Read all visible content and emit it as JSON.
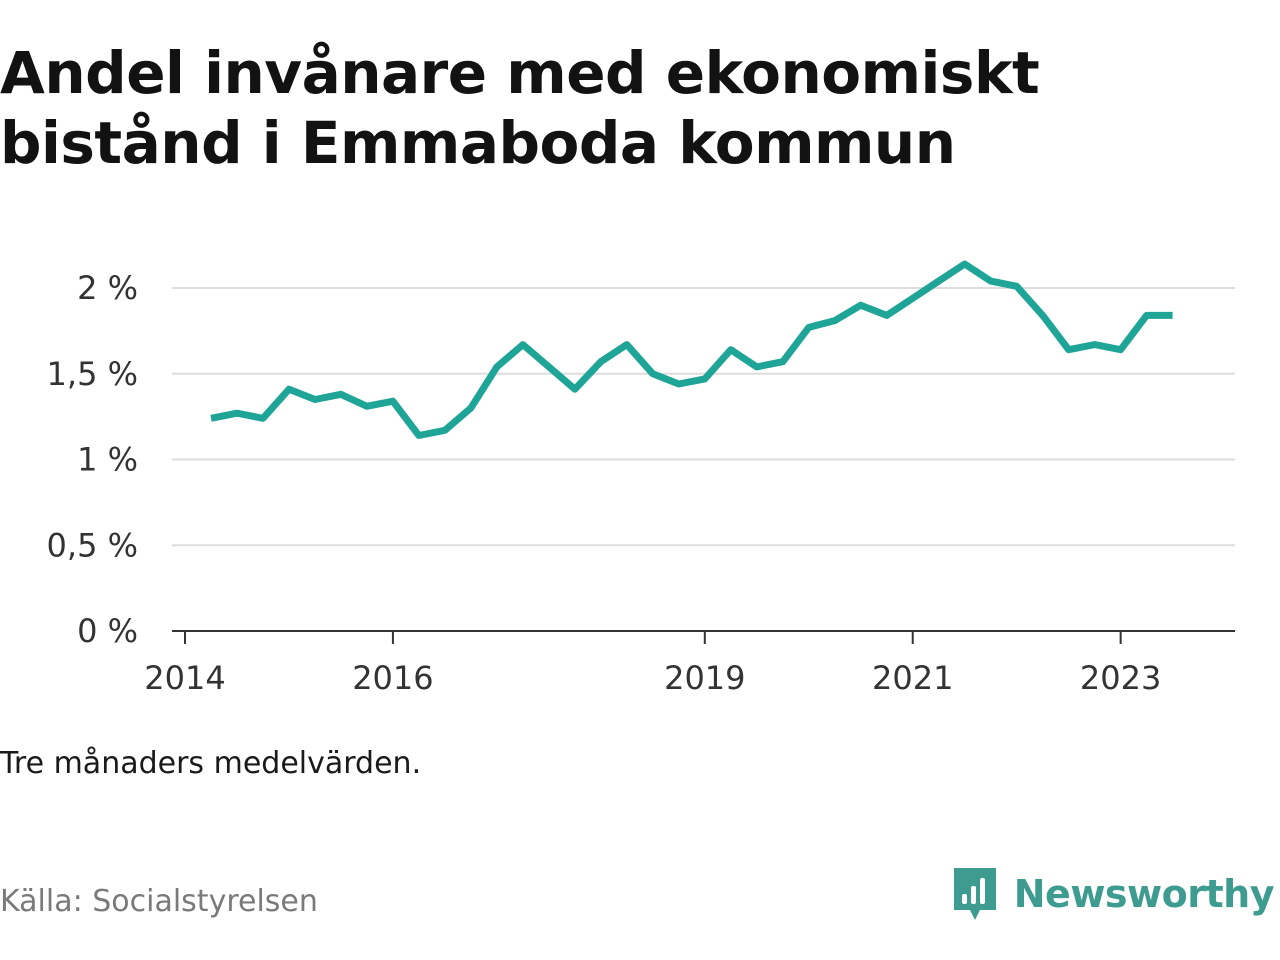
{
  "title_lines": [
    "Andel invånare med ekonomiskt",
    "bistånd i Emmaboda kommun"
  ],
  "note": "Tre månaders medelvärden.",
  "source": "Källa: Socialstyrelsen",
  "brand": {
    "name": "Newsworthy",
    "logo_icon": "bar-chart-speech-bubble-icon",
    "color": "#3d9b8f"
  },
  "chart_data": {
    "type": "line",
    "title": "Andel invånare med ekonomiskt bistånd i Emmaboda kommun",
    "xlabel": "",
    "ylabel": "",
    "x_ticks": [
      {
        "label": "2014",
        "value": 2014.0
      },
      {
        "label": "2016",
        "value": 2016.0
      },
      {
        "label": "2019",
        "value": 2019.0
      },
      {
        "label": "2021",
        "value": 2021.0
      },
      {
        "label": "2023",
        "value": 2023.0
      }
    ],
    "y_ticks": [
      {
        "label": "0 %",
        "value": 0
      },
      {
        "label": "0,5 %",
        "value": 0.5
      },
      {
        "label": "1 %",
        "value": 1.0
      },
      {
        "label": "1,5 %",
        "value": 1.5
      },
      {
        "label": "2 %",
        "value": 2.0
      }
    ],
    "xlim": [
      2014.0,
      2024.1
    ],
    "ylim": [
      0,
      2.0
    ],
    "grid": true,
    "line_color": "#1fa598",
    "series": [
      {
        "x": [
          "2014-Q2",
          "2014-Q3",
          "2014-Q4",
          "2015-Q1",
          "2015-Q2",
          "2015-Q3",
          "2015-Q4",
          "2016-Q1",
          "2016-Q2",
          "2016-Q3",
          "2016-Q4",
          "2017-Q1",
          "2017-Q2",
          "2017-Q3",
          "2017-Q4",
          "2018-Q1",
          "2018-Q2",
          "2018-Q3",
          "2018-Q4",
          "2019-Q1",
          "2019-Q2",
          "2019-Q3",
          "2019-Q4",
          "2020-Q1",
          "2020-Q2",
          "2020-Q3",
          "2020-Q4",
          "2021-Q1",
          "2021-Q2",
          "2021-Q3",
          "2021-Q4",
          "2022-Q1",
          "2022-Q2",
          "2022-Q3",
          "2022-Q4",
          "2023-Q1",
          "2023-Q2",
          "2023-Q3"
        ],
        "values": [
          1.24,
          1.27,
          1.24,
          1.41,
          1.35,
          1.38,
          1.31,
          1.34,
          1.14,
          1.17,
          1.3,
          1.54,
          1.67,
          1.54,
          1.41,
          1.57,
          1.67,
          1.5,
          1.44,
          1.47,
          1.64,
          1.54,
          1.57,
          1.77,
          1.81,
          1.9,
          1.84,
          1.94,
          2.04,
          2.14,
          2.04,
          2.01,
          1.84,
          1.64,
          1.67,
          1.64,
          1.84,
          1.84
        ]
      }
    ]
  }
}
